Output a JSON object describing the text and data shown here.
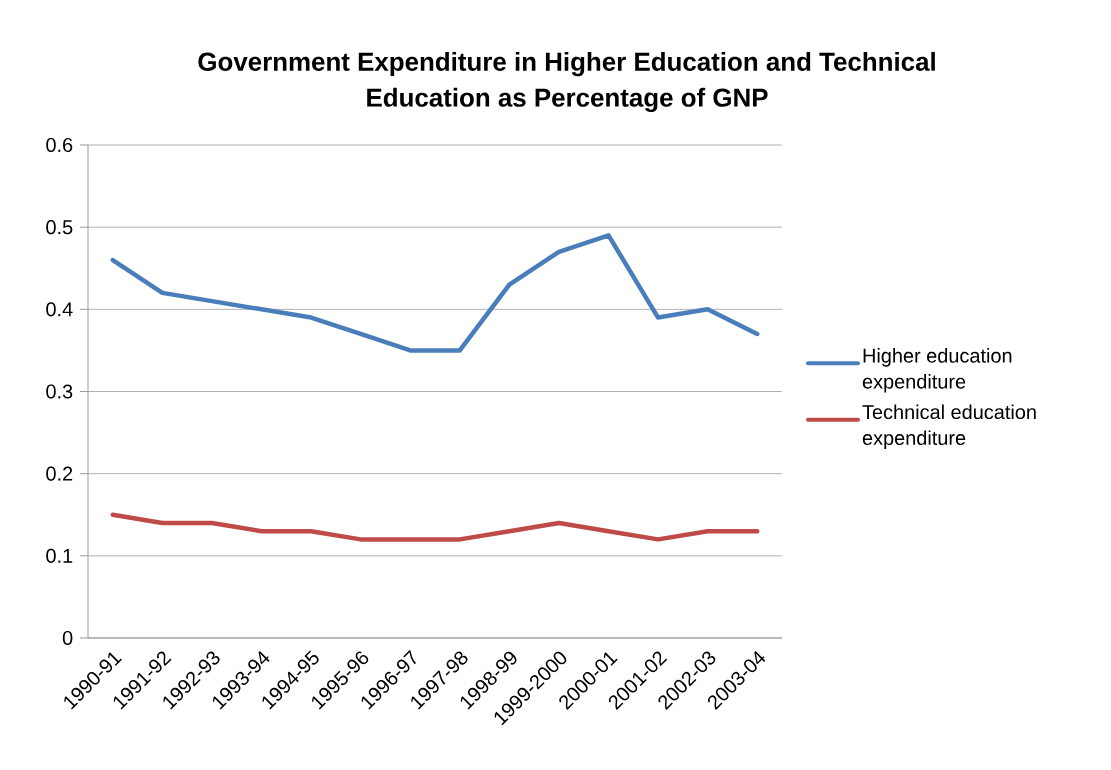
{
  "chart_data": {
    "type": "line",
    "title": "Government Expenditure in Higher Education and Technical Education as Percentage of GNP",
    "categories": [
      "1990-91",
      "1991-92",
      "1992-93",
      "1993-94",
      "1994-95",
      "1995-96",
      "1996-97",
      "1997-98",
      "1998-99",
      "1999-2000",
      "2000-01",
      "2001-02",
      "2002-03",
      "2003-04"
    ],
    "series": [
      {
        "name": "Higher education expenditure",
        "color": "#4a7ebb",
        "values": [
          0.46,
          0.42,
          0.41,
          0.4,
          0.39,
          0.37,
          0.35,
          0.35,
          0.43,
          0.47,
          0.49,
          0.39,
          0.4,
          0.37
        ]
      },
      {
        "name": "Technical education expenditure",
        "color": "#be4b48",
        "values": [
          0.15,
          0.14,
          0.14,
          0.13,
          0.13,
          0.12,
          0.12,
          0.12,
          0.13,
          0.14,
          0.13,
          0.12,
          0.13,
          0.13
        ]
      }
    ],
    "ylim": [
      0,
      0.6
    ],
    "yticks": [
      0,
      0.1,
      0.2,
      0.3,
      0.4,
      0.5,
      0.6
    ],
    "grid": "y",
    "legend": "right",
    "marker": "none",
    "line_style": "solid"
  }
}
